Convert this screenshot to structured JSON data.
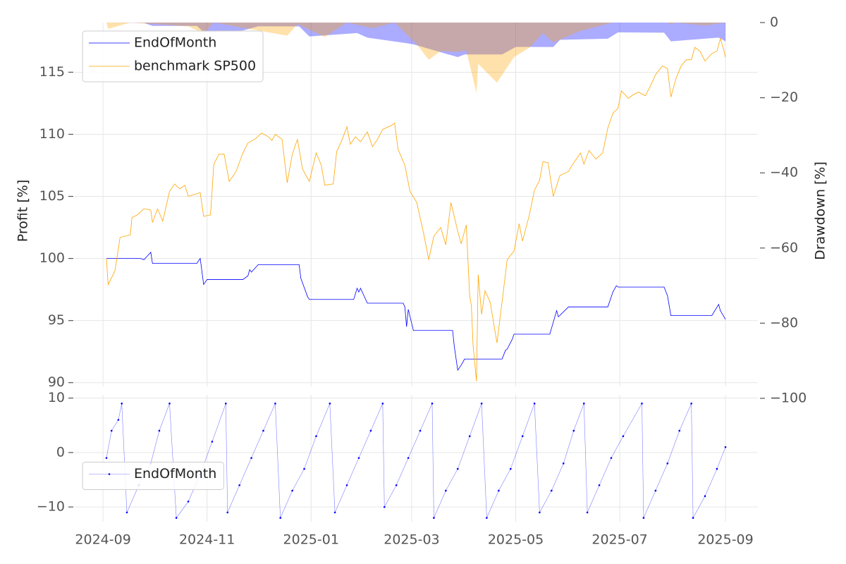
{
  "chart_data": [
    {
      "type": "line",
      "ylabel": "Profit [%]",
      "y2label": "Drawdown [%]",
      "ylim": [
        89.7,
        119
      ],
      "yticks": [
        90,
        95,
        100,
        105,
        110,
        115
      ],
      "y2lim": [
        -100,
        0
      ],
      "y2ticks": [
        {
          "value": -100,
          "label": "−100"
        },
        {
          "value": -80,
          "label": "−80"
        },
        {
          "value": -60,
          "label": "−60"
        },
        {
          "value": -40,
          "label": "−40"
        },
        {
          "value": -20,
          "label": "−20"
        },
        0
      ],
      "grid": true,
      "legend": "upper left",
      "series": [
        {
          "name": "EndOfMonth",
          "color": "#0000ff",
          "x": [
            "2024-09-03",
            "2024-09-23",
            "2024-09-25",
            "2024-09-27",
            "2024-09-29",
            "2024-09-30",
            "2024-10-26",
            "2024-10-28",
            "2024-10-30",
            "2024-11-01",
            "2024-11-22",
            "2024-11-25",
            "2024-11-26",
            "2024-11-27",
            "2024-12-01",
            "2024-12-25",
            "2024-12-26",
            "2024-12-30",
            "2024-12-31",
            "2025-01-26",
            "2025-01-28",
            "2025-01-29",
            "2025-01-30",
            "2025-02-03",
            "2025-02-24",
            "2025-02-25",
            "2025-02-26",
            "2025-02-27",
            "2025-03-02",
            "2025-03-25",
            "2025-03-26",
            "2025-03-28",
            "2025-03-30",
            "2025-04-01",
            "2025-04-23",
            "2025-04-25",
            "2025-04-26",
            "2025-04-29",
            "2025-04-30",
            "2025-05-21",
            "2025-05-25",
            "2025-05-26",
            "2025-06-01",
            "2025-06-24",
            "2025-06-27",
            "2025-06-29",
            "2025-06-30",
            "2025-07-27",
            "2025-07-29",
            "2025-07-31",
            "2025-08-24",
            "2025-08-28",
            "2025-08-29",
            "2025-09-01"
          ],
          "values": [
            100,
            100,
            99.9,
            100.2,
            100.5,
            99.6,
            99.6,
            100.0,
            97.9,
            98.3,
            98.3,
            98.6,
            99.1,
            98.9,
            99.5,
            99.5,
            98.4,
            96.9,
            96.7,
            96.7,
            97.6,
            97.3,
            97.6,
            96.4,
            96.4,
            96.1,
            94.5,
            95.9,
            94.2,
            94.2,
            92.9,
            91.0,
            91.4,
            91.9,
            91.9,
            92.6,
            92.7,
            93.5,
            93.9,
            93.9,
            95.8,
            95.3,
            96.1,
            96.1,
            97.3,
            97.8,
            97.7,
            97.7,
            97.0,
            95.4,
            95.4,
            96.3,
            95.8,
            95.1
          ]
        },
        {
          "name": "benchmark SP500",
          "color": "#ffa500",
          "x": [
            "2024-09-03",
            "2024-09-04",
            "2024-09-08",
            "2024-09-11",
            "2024-09-17",
            "2024-09-18",
            "2024-09-21",
            "2024-09-25",
            "2024-09-29",
            "2024-09-30",
            "2024-10-03",
            "2024-10-06",
            "2024-10-10",
            "2024-10-13",
            "2024-10-16",
            "2024-10-19",
            "2024-10-21",
            "2024-10-28",
            "2024-10-30",
            "2024-11-03",
            "2024-11-05",
            "2024-11-08",
            "2024-11-11",
            "2024-11-14",
            "2024-11-18",
            "2024-11-22",
            "2024-11-25",
            "2024-11-29",
            "2024-12-03",
            "2024-12-07",
            "2024-12-09",
            "2024-12-11",
            "2024-12-15",
            "2024-12-18",
            "2024-12-21",
            "2024-12-24",
            "2024-12-27",
            "2024-12-31",
            "2025-01-04",
            "2025-01-07",
            "2025-01-09",
            "2025-01-14",
            "2025-01-16",
            "2025-01-19",
            "2025-01-22",
            "2025-01-24",
            "2025-01-27",
            "2025-01-30",
            "2025-02-03",
            "2025-02-06",
            "2025-02-09",
            "2025-02-12",
            "2025-02-17",
            "2025-02-19",
            "2025-02-21",
            "2025-02-25",
            "2025-02-28",
            "2025-03-04",
            "2025-03-08",
            "2025-03-11",
            "2025-03-14",
            "2025-03-18",
            "2025-03-21",
            "2025-03-24",
            "2025-03-28",
            "2025-03-30",
            "2025-04-02",
            "2025-04-04",
            "2025-04-05",
            "2025-04-06",
            "2025-04-08",
            "2025-04-09",
            "2025-04-11",
            "2025-04-13",
            "2025-04-16",
            "2025-04-20",
            "2025-04-23",
            "2025-04-26",
            "2025-04-30",
            "2025-05-03",
            "2025-05-05",
            "2025-05-09",
            "2025-05-12",
            "2025-05-15",
            "2025-05-17",
            "2025-05-20",
            "2025-05-23",
            "2025-05-27",
            "2025-06-01",
            "2025-06-03",
            "2025-06-08",
            "2025-06-10",
            "2025-06-13",
            "2025-06-17",
            "2025-06-21",
            "2025-06-24",
            "2025-06-27",
            "2025-06-30",
            "2025-07-02",
            "2025-07-06",
            "2025-07-09",
            "2025-07-12",
            "2025-07-16",
            "2025-07-19",
            "2025-07-22",
            "2025-07-26",
            "2025-07-29",
            "2025-07-31",
            "2025-08-03",
            "2025-08-06",
            "2025-08-09",
            "2025-08-12",
            "2025-08-14",
            "2025-08-17",
            "2025-08-20",
            "2025-08-24",
            "2025-08-27",
            "2025-08-29",
            "2025-08-31",
            "2025-09-01"
          ],
          "values": [
            100,
            97.9,
            99,
            101.7,
            101.9,
            103.3,
            103.5,
            104.0,
            103.9,
            102.9,
            104,
            103,
            105.4,
            106,
            105.6,
            105.9,
            105,
            105.3,
            103.4,
            103.5,
            107.6,
            108.4,
            108.4,
            106.2,
            107,
            108.5,
            109.3,
            109.6,
            110.1,
            109.8,
            109.5,
            110,
            109.6,
            106.1,
            108.4,
            109.6,
            107.2,
            106.2,
            108.5,
            107.5,
            105.9,
            106,
            108.6,
            109.5,
            110.6,
            109.2,
            109.8,
            109.4,
            110.2,
            109,
            109.6,
            110.4,
            110.7,
            110.9,
            108.8,
            107.5,
            105.4,
            104.5,
            102,
            99.9,
            101.8,
            102.5,
            101.1,
            104.5,
            102.2,
            101.2,
            102.7,
            97,
            96.2,
            93,
            90.1,
            98.7,
            95.5,
            97.4,
            96.5,
            93.2,
            96.5,
            99.9,
            100.6,
            102.8,
            101.4,
            103.5,
            105.5,
            106.3,
            107.8,
            107.7,
            105,
            106.7,
            107,
            107.5,
            108.5,
            107.6,
            108.7,
            108,
            108.5,
            110.5,
            111.7,
            112.1,
            113.5,
            112.9,
            113.2,
            113.4,
            113.1,
            113.9,
            114.8,
            115.5,
            115.3,
            113,
            114.5,
            115.5,
            116,
            116,
            117,
            116.7,
            115.9,
            116.5,
            116.7,
            117.7,
            116.8,
            116.2
          ]
        }
      ],
      "areas": [
        {
          "color": "#0000ff",
          "alpha": 0.33,
          "axis": "y2",
          "x": [
            "2024-09-03",
            "2024-09-25",
            "2024-09-30",
            "2024-10-26",
            "2024-10-30",
            "2024-11-22",
            "2024-12-01",
            "2024-12-25",
            "2024-12-31",
            "2025-01-28",
            "2025-02-03",
            "2025-02-26",
            "2025-03-02",
            "2025-03-28",
            "2025-04-01",
            "2025-04-23",
            "2025-05-01",
            "2025-05-23",
            "2025-05-27",
            "2025-06-24",
            "2025-06-30",
            "2025-07-27",
            "2025-07-31",
            "2025-08-28",
            "2025-09-01"
          ],
          "values": [
            0,
            -0.1,
            -0.9,
            -0.9,
            -2.5,
            -2.1,
            -1,
            -1,
            -3.7,
            -2.8,
            -4,
            -5.5,
            -5.8,
            -9.2,
            -8.5,
            -8.5,
            -6.5,
            -6.5,
            -4.6,
            -4.3,
            -2.6,
            -2.7,
            -5,
            -4,
            -5
          ]
        },
        {
          "color": "#ffa500",
          "alpha": 0.33,
          "axis": "y2",
          "x": [
            "2024-09-03",
            "2024-09-04",
            "2024-09-17",
            "2024-10-21",
            "2024-10-30",
            "2024-11-05",
            "2024-12-18",
            "2024-12-24",
            "2025-01-09",
            "2025-01-22",
            "2025-02-06",
            "2025-02-19",
            "2025-03-04",
            "2025-03-11",
            "2025-03-18",
            "2025-03-28",
            "2025-04-02",
            "2025-04-08",
            "2025-04-09",
            "2025-04-20",
            "2025-04-30",
            "2025-05-09",
            "2025-05-17",
            "2025-05-23",
            "2025-06-08",
            "2025-06-27",
            "2025-07-29",
            "2025-07-31",
            "2025-08-03",
            "2025-08-20",
            "2025-09-01"
          ],
          "values": [
            0,
            -1.7,
            0,
            -1,
            -2.9,
            0,
            -3.5,
            -0.4,
            -3.8,
            0,
            -1.5,
            0,
            -5.8,
            -9.9,
            -7.6,
            -7.8,
            -7.4,
            -18.8,
            -11,
            -16,
            -9.2,
            -6.7,
            -2.8,
            -5.3,
            -2.2,
            0,
            0,
            -0.5,
            0,
            -0.8,
            0
          ]
        }
      ]
    },
    {
      "type": "line",
      "xlim": [
        "2024-08-15",
        "2025-09-20"
      ],
      "xticks": [
        {
          "value": "2024-09-01",
          "label": "2024-09"
        },
        {
          "value": "2024-11-01",
          "label": "2024-11"
        },
        {
          "value": "2025-01-01",
          "label": "2025-01"
        },
        {
          "value": "2025-03-01",
          "label": "2025-03"
        },
        {
          "value": "2025-05-01",
          "label": "2025-05"
        },
        {
          "value": "2025-07-01",
          "label": "2025-07"
        },
        {
          "value": "2025-09-01",
          "label": "2025-09"
        }
      ],
      "ylim": [
        -12.7,
        10.6
      ],
      "yticks": [
        {
          "value": -10,
          "label": "−10"
        },
        0,
        10
      ],
      "grid": true,
      "legend": "center left",
      "series": [
        {
          "name": "EndOfMonth",
          "color": "#0000ff",
          "marker": true,
          "x": [
            "2024-09-03",
            "2024-09-06",
            "2024-09-10",
            "2024-09-12",
            "2024-09-15",
            "2024-09-22",
            "2024-09-29",
            "2024-10-04",
            "2024-10-10",
            "2024-10-14",
            "2024-10-21",
            "2024-10-28",
            "2024-11-04",
            "2024-11-12",
            "2024-11-13",
            "2024-11-20",
            "2024-11-27",
            "2024-12-04",
            "2024-12-11",
            "2024-12-14",
            "2024-12-21",
            "2024-12-28",
            "2025-01-04",
            "2025-01-12",
            "2025-01-15",
            "2025-01-22",
            "2025-01-29",
            "2025-02-05",
            "2025-02-12",
            "2025-02-13",
            "2025-02-20",
            "2025-02-27",
            "2025-03-06",
            "2025-03-13",
            "2025-03-14",
            "2025-03-21",
            "2025-03-28",
            "2025-04-04",
            "2025-04-11",
            "2025-04-14",
            "2025-04-21",
            "2025-04-28",
            "2025-05-05",
            "2025-05-12",
            "2025-05-15",
            "2025-05-22",
            "2025-05-29",
            "2025-06-04",
            "2025-06-10",
            "2025-06-12",
            "2025-06-19",
            "2025-06-26",
            "2025-07-03",
            "2025-07-14",
            "2025-07-15",
            "2025-07-22",
            "2025-07-29",
            "2025-08-05",
            "2025-08-12",
            "2025-08-13",
            "2025-08-20",
            "2025-08-27",
            "2025-09-01"
          ],
          "values": [
            -1,
            4,
            6,
            9,
            -11,
            -6,
            -2,
            4,
            9,
            -12,
            -9,
            -4,
            2,
            9,
            -11,
            -6,
            -1,
            4,
            9,
            -12,
            -7,
            -3,
            3,
            9,
            -11,
            -6,
            -1,
            4,
            9,
            -10,
            -6,
            -1,
            4,
            9,
            -12,
            -7,
            -3,
            3,
            9,
            -12,
            -7,
            -3,
            3,
            9,
            -11,
            -7,
            -2,
            4,
            9,
            -11,
            -6,
            -1,
            3,
            9,
            -12,
            -7,
            -2,
            4,
            9,
            -12,
            -8,
            -3,
            1
          ]
        }
      ]
    }
  ]
}
